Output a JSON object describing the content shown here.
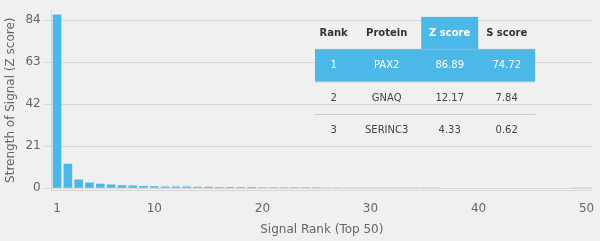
{
  "chart_data": {
    "type": "bar",
    "x_label": "Signal Rank (Top 50)",
    "y_label": "Strength of Signal (Z score)",
    "x": [
      1,
      2,
      3,
      4,
      5,
      6,
      7,
      8,
      9,
      10,
      11,
      12,
      13,
      14,
      15,
      16,
      17,
      18,
      19,
      20,
      21,
      22,
      23,
      24,
      25,
      26,
      27,
      28,
      29,
      30,
      31,
      32,
      33,
      34,
      35,
      36,
      37,
      38,
      39,
      40,
      41,
      42,
      43,
      44,
      45,
      46,
      47,
      48,
      49,
      50
    ],
    "values": [
      86.89,
      12.17,
      4.33,
      2.8,
      2.2,
      1.8,
      1.5,
      1.3,
      1.1,
      1.0,
      0.9,
      0.85,
      0.8,
      0.75,
      0.7,
      0.65,
      0.6,
      0.58,
      0.55,
      0.52,
      0.5,
      0.48,
      0.46,
      0.44,
      0.42,
      0.4,
      0.38,
      0.37,
      0.36,
      0.35,
      0.34,
      0.33,
      0.32,
      0.31,
      0.3,
      0.29,
      0.28,
      0.27,
      0.26,
      0.25,
      0.24,
      0.23,
      0.22,
      0.21,
      0.2,
      0.19,
      0.18,
      0.17,
      0.16,
      0.15
    ],
    "color": "#4cb8e8",
    "xlim": [
      0.5,
      50.5
    ],
    "xticks": [
      1,
      10,
      20,
      30,
      40,
      50
    ],
    "ylim": [
      -1,
      89
    ],
    "yticks": [
      0,
      21,
      42,
      63,
      84
    ],
    "grid": "y",
    "table": {
      "headers": [
        "Rank",
        "Protein",
        "Z score",
        "S score"
      ],
      "rows": [
        [
          "1",
          "PAX2",
          "86.89",
          "74.72"
        ],
        [
          "2",
          "GNAQ",
          "12.17",
          "7.84"
        ],
        [
          "3",
          "SERINC3",
          "4.33",
          "0.62"
        ]
      ]
    }
  }
}
